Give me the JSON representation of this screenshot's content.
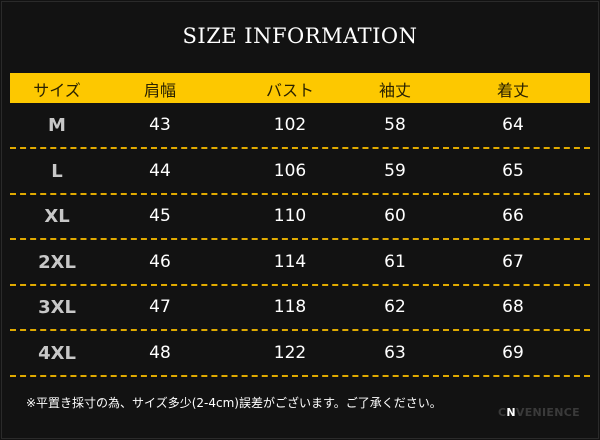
{
  "title": "SIZE INFORMATION",
  "colors": {
    "header_bg": "#fdc800",
    "separator": "#e0aa00",
    "background": "#121212"
  },
  "columns": [
    "サイズ",
    "肩幅",
    "バスト",
    "袖丈",
    "着丈"
  ],
  "rows": [
    [
      "M",
      "43",
      "102",
      "58",
      "64"
    ],
    [
      "L",
      "44",
      "106",
      "59",
      "65"
    ],
    [
      "XL",
      "45",
      "110",
      "60",
      "66"
    ],
    [
      "2XL",
      "46",
      "114",
      "61",
      "67"
    ],
    [
      "3XL",
      "47",
      "118",
      "62",
      "68"
    ],
    [
      "4XL",
      "48",
      "122",
      "63",
      "69"
    ]
  ],
  "note": "※平置き採寸の為、サイズ多少(2-4cm)誤差がございます。ご了承ください。",
  "logo": "CONVENIENCE"
}
